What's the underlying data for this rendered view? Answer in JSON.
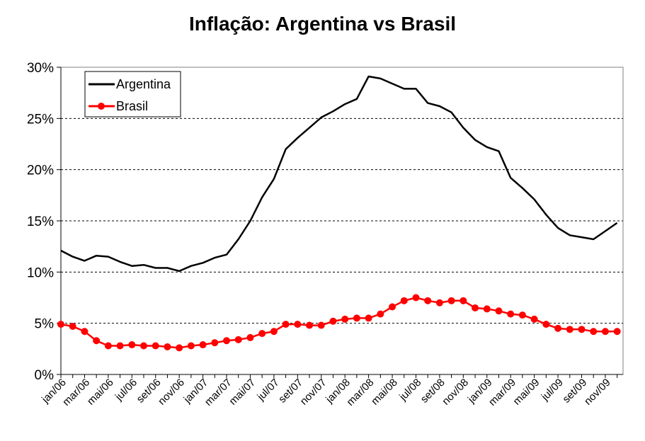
{
  "chart_data": {
    "type": "line",
    "title": "Inflação: Argentina vs Brasil",
    "xlabel": "",
    "ylabel": "",
    "ylim": [
      0,
      30
    ],
    "y_ticks": [
      "0%",
      "5%",
      "10%",
      "15%",
      "20%",
      "25%",
      "30%"
    ],
    "x_tick_labels": [
      "jan/06",
      "mar/06",
      "mai/06",
      "jul/06",
      "set/06",
      "nov/06",
      "jan/07",
      "mar/07",
      "mai/07",
      "jul/07",
      "set/07",
      "nov/07",
      "jan/08",
      "mar/08",
      "mai/08",
      "jul/08",
      "set/08",
      "nov/08",
      "jan/09",
      "mar/09",
      "mai/09",
      "jul/09",
      "set/09",
      "nov/09"
    ],
    "grid": "horizontal dashed",
    "legend_position": "top-left",
    "x": [
      "jan/06",
      "fev/06",
      "mar/06",
      "abr/06",
      "mai/06",
      "jun/06",
      "jul/06",
      "ago/06",
      "set/06",
      "out/06",
      "nov/06",
      "dez/06",
      "jan/07",
      "fev/07",
      "mar/07",
      "abr/07",
      "mai/07",
      "jun/07",
      "jul/07",
      "ago/07",
      "set/07",
      "out/07",
      "nov/07",
      "dez/07",
      "jan/08",
      "fev/08",
      "mar/08",
      "abr/08",
      "mai/08",
      "jun/08",
      "jul/08",
      "ago/08",
      "set/08",
      "out/08",
      "nov/08",
      "dez/08",
      "jan/09",
      "fev/09",
      "mar/09",
      "abr/09",
      "mai/09",
      "jun/09",
      "jul/09",
      "ago/09",
      "set/09",
      "out/09",
      "nov/09",
      "dez/09"
    ],
    "series": [
      {
        "name": "Argentina",
        "color": "#000000",
        "marker": "none",
        "values": [
          12.1,
          11.5,
          11.1,
          11.6,
          11.5,
          11.0,
          10.6,
          10.7,
          10.4,
          10.4,
          10.1,
          10.6,
          10.9,
          11.4,
          11.7,
          13.2,
          15.0,
          17.3,
          19.1,
          22.0,
          23.1,
          24.1,
          25.1,
          25.7,
          26.4,
          26.9,
          29.1,
          28.9,
          28.4,
          27.9,
          27.9,
          26.5,
          26.2,
          25.6,
          24.1,
          22.9,
          22.2,
          21.8,
          19.2,
          18.2,
          17.1,
          15.6,
          14.3,
          13.6,
          13.4,
          13.2,
          14.0,
          14.8
        ]
      },
      {
        "name": "Brasil",
        "color": "#ff0000",
        "marker": "circle",
        "values": [
          4.9,
          4.7,
          4.2,
          3.3,
          2.8,
          2.8,
          2.9,
          2.8,
          2.8,
          2.7,
          2.6,
          2.8,
          2.9,
          3.1,
          3.3,
          3.4,
          3.6,
          4.0,
          4.2,
          4.9,
          4.9,
          4.8,
          4.8,
          5.2,
          5.4,
          5.5,
          5.5,
          5.9,
          6.6,
          7.2,
          7.5,
          7.2,
          7.0,
          7.2,
          7.2,
          6.5,
          6.4,
          6.2,
          5.9,
          5.8,
          5.4,
          4.9,
          4.5,
          4.4,
          4.4,
          4.2,
          4.2,
          4.2
        ]
      }
    ]
  }
}
